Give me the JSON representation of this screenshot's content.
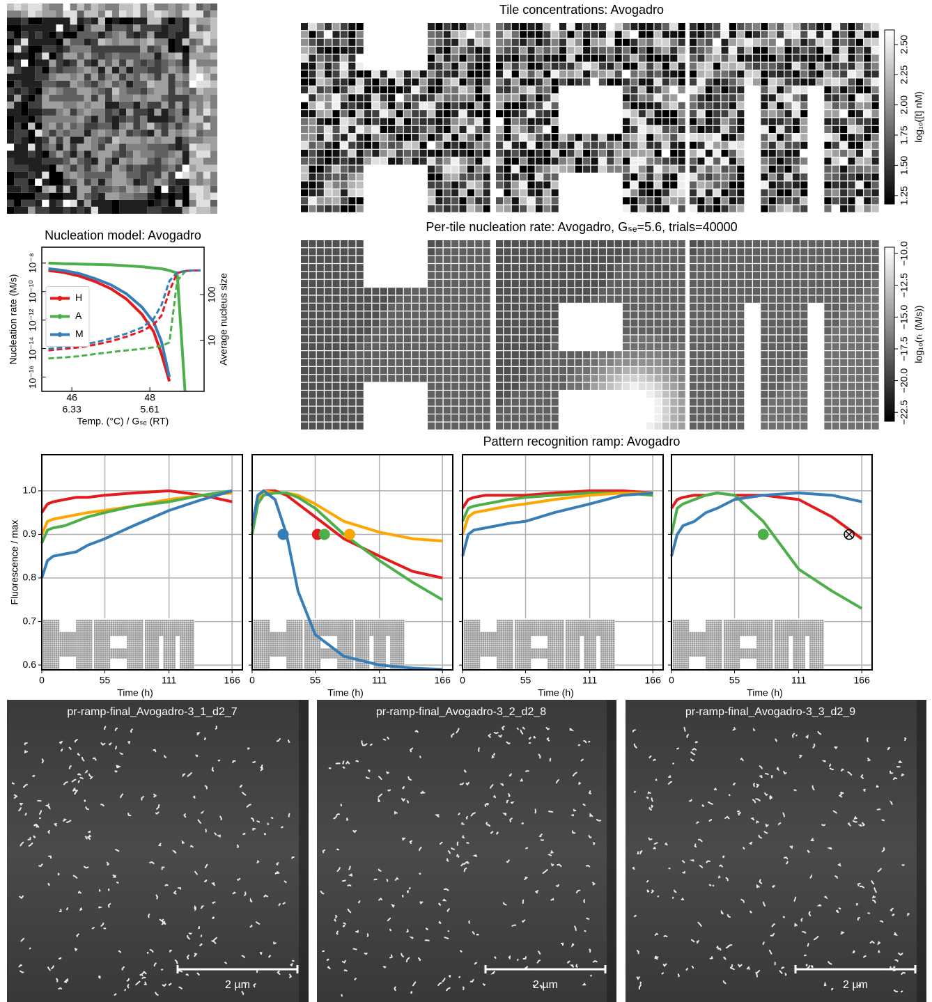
{
  "suptitle": "Pattern recognition ramp: Avogadro",
  "chart_data": [
    {
      "type": "heatmap",
      "title": "Tile concentrations: Avogadro",
      "colorbar_label": "log₁₀([t] nM)",
      "clim": [
        1.18,
        2.62
      ],
      "cticks": [
        1.25,
        {
          "value": 1.5,
          "label": "1.50"
        },
        1.75,
        {
          "value": 2.0,
          "label": "2.00"
        },
        2.25,
        {
          "value": 2.5,
          "label": "2.50"
        }
      ]
    },
    {
      "type": "heatmap",
      "title": "Per-tile nucleation rate: Avogadro, Gₛₑ=5.6, trials=40000",
      "colorbar_label": "log₁₀(rₜ (M/s))",
      "clim": [
        -23.2,
        -9.5
      ],
      "cticks": [
        {
          "value": -22.5,
          "label": "−22.5"
        },
        {
          "value": -20,
          "label": "−20.0"
        },
        {
          "value": -17.5,
          "label": "−17.5"
        },
        {
          "value": -15,
          "label": "−15.0"
        },
        {
          "value": -12.5,
          "label": "−12.5"
        },
        {
          "value": -10,
          "label": "−10.0"
        }
      ]
    },
    {
      "type": "line",
      "title": "Nucleation model: Avogadro",
      "xlabel": "Temp. (°C) / Gₛₑ (RT)",
      "ylabel": "Nucleation rate (M/s)",
      "y2label": "Average nucleus size",
      "log_y": true,
      "log_y2": true,
      "legend": "center left",
      "xlim": [
        45.23,
        49.39
      ],
      "xticks": [
        46,
        48
      ],
      "secondary_xticks": [
        {
          "value": 46,
          "label": "6.33"
        },
        {
          "value": 48,
          "label": "5.61"
        }
      ],
      "ylim": [
        1e-17,
        1.3e-07
      ],
      "yticks": [
        {
          "value": 1e-16,
          "label": "10⁻¹⁶"
        },
        {
          "value": 1e-14,
          "label": "10⁻¹⁴"
        },
        {
          "value": 1e-12,
          "label": "10⁻¹²"
        },
        {
          "value": 1e-10,
          "label": "10⁻¹⁰"
        },
        {
          "value": 1e-08,
          "label": "10⁻⁸"
        }
      ],
      "y2lim": [
        0.76,
        1100
      ],
      "y2ticks": [
        10,
        100
      ],
      "x": [
        45.4,
        45.8,
        46.2,
        46.6,
        47,
        47.4,
        47.8,
        48.1,
        48.3,
        48.5,
        48.7,
        48.9,
        49.1,
        49.3
      ],
      "series": [
        {
          "name": "H",
          "color": "#e41a1c",
          "values": [
            3e-09,
            2.2e-09,
            1.2e-09,
            5e-10,
            1.6e-10,
            3e-11,
            2.5e-12,
            1.5e-13,
            4e-15,
            5e-17,
            null,
            null,
            null,
            null
          ]
        },
        {
          "name": "A",
          "color": "#4daf4a",
          "values": [
            1e-08,
            9e-09,
            8.5e-09,
            8e-09,
            7.5e-09,
            6.5e-09,
            5.5e-09,
            4.5e-09,
            4e-09,
            3e-09,
            2e-09,
            1e-17,
            null,
            null
          ]
        },
        {
          "name": "M",
          "color": "#377eb8",
          "values": [
            4e-09,
            3e-09,
            1.8e-09,
            8e-10,
            3e-10,
            7e-11,
            8e-12,
            7e-13,
            3e-14,
            1e-16,
            null,
            null,
            null,
            null
          ]
        },
        {
          "color": "#e41a1c",
          "axis": "y2",
          "dash": true,
          "values": [
            6,
            6.5,
            7,
            8,
            9.5,
            12,
            16,
            22,
            35,
            120,
            300,
            330,
            340,
            340
          ]
        },
        {
          "color": "#4daf4a",
          "axis": "y2",
          "dash": true,
          "values": [
            4,
            4.2,
            4.5,
            5,
            5.5,
            6,
            6.5,
            7,
            7.5,
            9,
            200,
            320,
            340,
            340
          ]
        },
        {
          "color": "#377eb8",
          "axis": "y2",
          "dash": true,
          "values": [
            6.5,
            7,
            8,
            9,
            11,
            14,
            19,
            30,
            60,
            200,
            310,
            330,
            340,
            340
          ]
        }
      ]
    },
    {
      "type": "line",
      "ylabel": "Fluorescence / max",
      "xlabel": "Time (h)",
      "grid": true,
      "xlim": [
        0,
        175
      ],
      "xticks": [
        0,
        55,
        111,
        166
      ],
      "ylim": [
        0.589,
        1.083
      ],
      "yticks": [
        0.6,
        0.7,
        0.8,
        0.9,
        {
          "value": 1.0,
          "label": "1.0"
        }
      ],
      "x": [
        0,
        5,
        10,
        20,
        30,
        40,
        55,
        80,
        111,
        140,
        166
      ],
      "series": [
        {
          "color": "#e41a1c",
          "values": [
            0.95,
            0.97,
            0.975,
            0.98,
            0.985,
            0.985,
            0.99,
            0.995,
            1.0,
            0.99,
            0.975
          ]
        },
        {
          "color": "#ffa500",
          "values": [
            0.9,
            0.93,
            0.935,
            0.94,
            0.945,
            0.95,
            0.955,
            0.965,
            0.98,
            0.99,
            0.995
          ]
        },
        {
          "color": "#4daf4a",
          "values": [
            0.88,
            0.91,
            0.915,
            0.92,
            0.93,
            0.94,
            0.95,
            0.965,
            0.975,
            0.99,
            1.0
          ]
        },
        {
          "color": "#377eb8",
          "values": [
            0.8,
            0.84,
            0.85,
            0.855,
            0.86,
            0.875,
            0.89,
            0.92,
            0.955,
            0.98,
            1.0
          ]
        }
      ]
    },
    {
      "type": "line",
      "xlabel": "Time (h)",
      "grid": true,
      "xlim": [
        0,
        175
      ],
      "xticks": [
        0,
        55,
        111,
        166
      ],
      "ylim": [
        0.589,
        1.083
      ],
      "yticks": [
        0.6,
        0.7,
        0.8,
        0.9,
        {
          "value": 1.0,
          "label": "1.0"
        }
      ],
      "x": [
        0,
        5,
        10,
        20,
        30,
        40,
        55,
        80,
        111,
        140,
        166
      ],
      "series": [
        {
          "color": "#e41a1c",
          "values": [
            0.92,
            0.98,
            1.0,
            1.0,
            0.99,
            0.97,
            0.94,
            0.89,
            0.85,
            0.815,
            0.8
          ]
        },
        {
          "color": "#ffa500",
          "values": [
            0.93,
            0.98,
            1.0,
            0.995,
            0.995,
            0.99,
            0.97,
            0.93,
            0.905,
            0.89,
            0.885
          ]
        },
        {
          "color": "#4daf4a",
          "values": [
            0.9,
            0.97,
            0.99,
            0.995,
            0.995,
            0.985,
            0.96,
            0.9,
            0.84,
            0.79,
            0.75
          ]
        },
        {
          "color": "#377eb8",
          "values": [
            0.92,
            0.99,
            1.0,
            0.98,
            0.9,
            0.77,
            0.67,
            0.62,
            0.6,
            0.593,
            0.59
          ]
        }
      ],
      "markers": [
        {
          "x": 27,
          "y": 0.9,
          "color": "#377eb8"
        },
        {
          "x": 57,
          "y": 0.9,
          "color": "#e41a1c"
        },
        {
          "x": 63,
          "y": 0.9,
          "color": "#4daf4a"
        },
        {
          "x": 85,
          "y": 0.9,
          "color": "#ffa500"
        }
      ]
    },
    {
      "type": "line",
      "xlabel": "Time (h)",
      "grid": true,
      "xlim": [
        0,
        175
      ],
      "xticks": [
        0,
        55,
        111,
        166
      ],
      "ylim": [
        0.589,
        1.083
      ],
      "yticks": [
        0.6,
        0.7,
        0.8,
        0.9,
        {
          "value": 1.0,
          "label": "1.0"
        }
      ],
      "x": [
        0,
        5,
        10,
        20,
        30,
        40,
        55,
        80,
        111,
        140,
        166
      ],
      "series": [
        {
          "color": "#e41a1c",
          "values": [
            0.96,
            0.98,
            0.985,
            0.99,
            0.99,
            0.99,
            0.99,
            0.995,
            1.0,
            1.0,
            0.995
          ]
        },
        {
          "color": "#4daf4a",
          "values": [
            0.93,
            0.96,
            0.965,
            0.97,
            0.975,
            0.98,
            0.985,
            0.99,
            0.995,
            0.995,
            0.99
          ]
        },
        {
          "color": "#ffa500",
          "values": [
            0.9,
            0.94,
            0.95,
            0.955,
            0.96,
            0.965,
            0.97,
            0.98,
            0.99,
            0.995,
            0.995
          ]
        },
        {
          "color": "#377eb8",
          "values": [
            0.85,
            0.9,
            0.91,
            0.915,
            0.92,
            0.925,
            0.93,
            0.95,
            0.97,
            0.99,
            0.995
          ]
        }
      ]
    },
    {
      "type": "line",
      "xlabel": "Time (h)",
      "grid": true,
      "xlim": [
        0,
        175
      ],
      "xticks": [
        0,
        55,
        111,
        166
      ],
      "ylim": [
        0.589,
        1.083
      ],
      "yticks": [
        0.6,
        0.7,
        0.8,
        0.9,
        {
          "value": 1.0,
          "label": "1.0"
        }
      ],
      "x": [
        0,
        5,
        10,
        20,
        30,
        40,
        55,
        80,
        111,
        140,
        166
      ],
      "series": [
        {
          "color": "#e41a1c",
          "values": [
            0.96,
            0.98,
            0.985,
            0.99,
            0.99,
            0.995,
            0.99,
            0.99,
            0.98,
            0.94,
            0.89
          ]
        },
        {
          "color": "#4daf4a",
          "values": [
            0.9,
            0.96,
            0.97,
            0.98,
            0.99,
            0.995,
            0.99,
            0.93,
            0.82,
            0.77,
            0.73
          ]
        },
        {
          "color": "#377eb8",
          "values": [
            0.85,
            0.9,
            0.92,
            0.93,
            0.95,
            0.96,
            0.98,
            0.99,
            0.995,
            0.99,
            0.975
          ]
        }
      ],
      "markers": [
        {
          "x": 80,
          "y": 0.9,
          "color": "#4daf4a"
        },
        {
          "x": 155,
          "y": 0.9,
          "color": "#000000",
          "marker": "crossed-circle"
        }
      ]
    }
  ],
  "images": [
    {
      "title": "pr-ramp-final_Avogadro-3_1_d2_7",
      "scale_bar": "2 µm"
    },
    {
      "title": "pr-ramp-final_Avogadro-3_2_d2_8",
      "scale_bar": "2 µm"
    },
    {
      "title": "pr-ramp-final_Avogadro-3_3_d2_9",
      "scale_bar": "2 µm"
    }
  ]
}
